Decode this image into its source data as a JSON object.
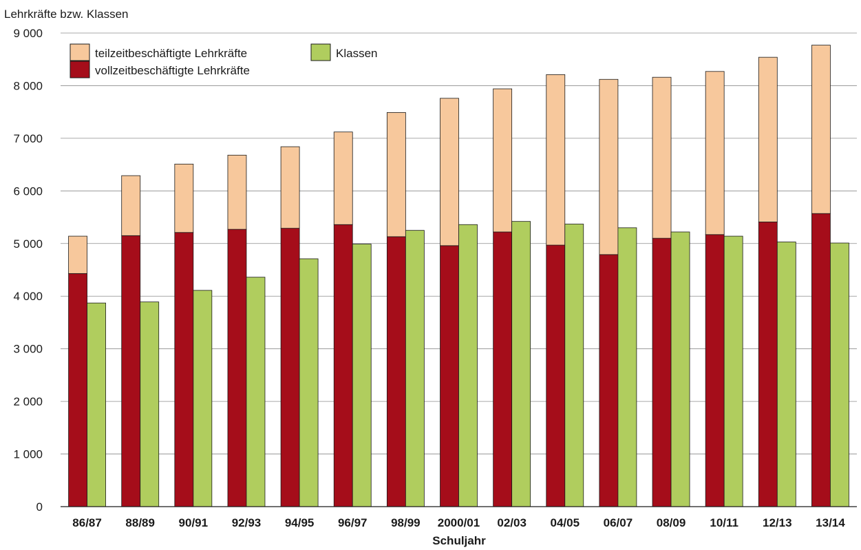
{
  "chart_data": {
    "type": "bar",
    "ylabel": "Lehrkräfte bzw. Klassen",
    "xlabel": "Schuljahr",
    "ylim": [
      0,
      9000
    ],
    "yticks": [
      0,
      1000,
      2000,
      3000,
      4000,
      5000,
      6000,
      7000,
      8000,
      9000
    ],
    "ytick_labels": [
      "0",
      "1 000",
      "2 000",
      "3 000",
      "4 000",
      "5 000",
      "6 000",
      "7 000",
      "8 000",
      "9 000"
    ],
    "grid": true,
    "legend_position": "top-left",
    "categories": [
      "86/87",
      "88/89",
      "90/91",
      "92/93",
      "94/95",
      "96/97",
      "98/99",
      "2000/01",
      "02/03",
      "04/05",
      "06/07",
      "08/09",
      "10/11",
      "12/13",
      "13/14"
    ],
    "series": [
      {
        "name": "vollzeitbeschäftigte Lehrkräfte",
        "color": "#a50d1a",
        "stack": "lehrkraefte",
        "values": [
          4430,
          5150,
          5210,
          5270,
          5290,
          5360,
          5130,
          4960,
          5220,
          4970,
          4790,
          5100,
          5170,
          5410,
          5570
        ]
      },
      {
        "name": "teilzeitbeschäftigte Lehrkräfte",
        "color": "#f7c89c",
        "stack": "lehrkraefte",
        "values": [
          710,
          1140,
          1300,
          1410,
          1550,
          1760,
          2360,
          2800,
          2720,
          3240,
          3330,
          3060,
          3100,
          3130,
          3200
        ]
      },
      {
        "name": "Klassen",
        "color": "#b0cd5e",
        "stack": "klassen",
        "values": [
          3870,
          3890,
          4110,
          4360,
          4710,
          4990,
          5250,
          5360,
          5420,
          5370,
          5300,
          5220,
          5140,
          5030,
          5010
        ]
      }
    ]
  }
}
